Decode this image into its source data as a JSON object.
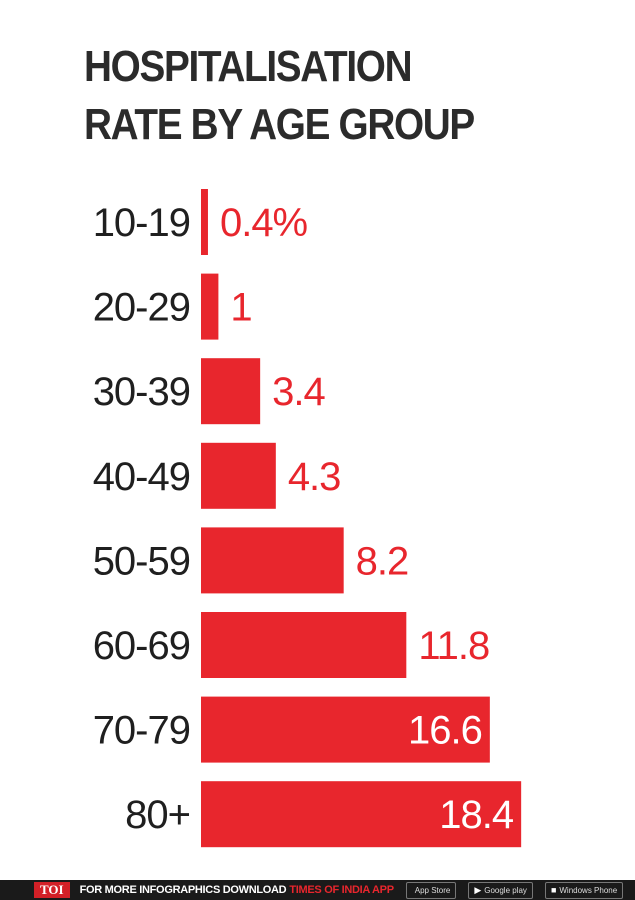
{
  "title_lines": [
    "HOSPITALISATION",
    "RATE BY AGE GROUP"
  ],
  "chart_data": {
    "type": "bar",
    "orientation": "horizontal",
    "title": "HOSPITALISATION RATE BY AGE GROUP",
    "categories": [
      "10-19",
      "20-29",
      "30-39",
      "40-49",
      "50-59",
      "60-69",
      "70-79",
      "80+"
    ],
    "values": [
      0.4,
      1,
      3.4,
      4.3,
      8.2,
      11.8,
      16.6,
      18.4
    ],
    "value_labels": [
      "0.4%",
      "1",
      "3.4",
      "4.3",
      "8.2",
      "11.8",
      "16.6",
      "18.4"
    ],
    "xlim": [
      0,
      20
    ],
    "grid": false,
    "legend": "none",
    "bar_color": "#e8262d",
    "label_color_outside": "#e8262d",
    "label_color_inside": "#ffffff"
  },
  "footer": {
    "logo": "TOI",
    "text": "FOR MORE  INFOGRAPHICS DOWNLOAD",
    "app_name": "TIMES OF INDIA  APP",
    "stores": [
      {
        "icon": "apple-icon",
        "glyph": "",
        "label": "App Store"
      },
      {
        "icon": "google-play-icon",
        "glyph": "▶",
        "label": "Google play"
      },
      {
        "icon": "windows-icon",
        "glyph": "■",
        "label": "Windows Phone"
      }
    ]
  }
}
